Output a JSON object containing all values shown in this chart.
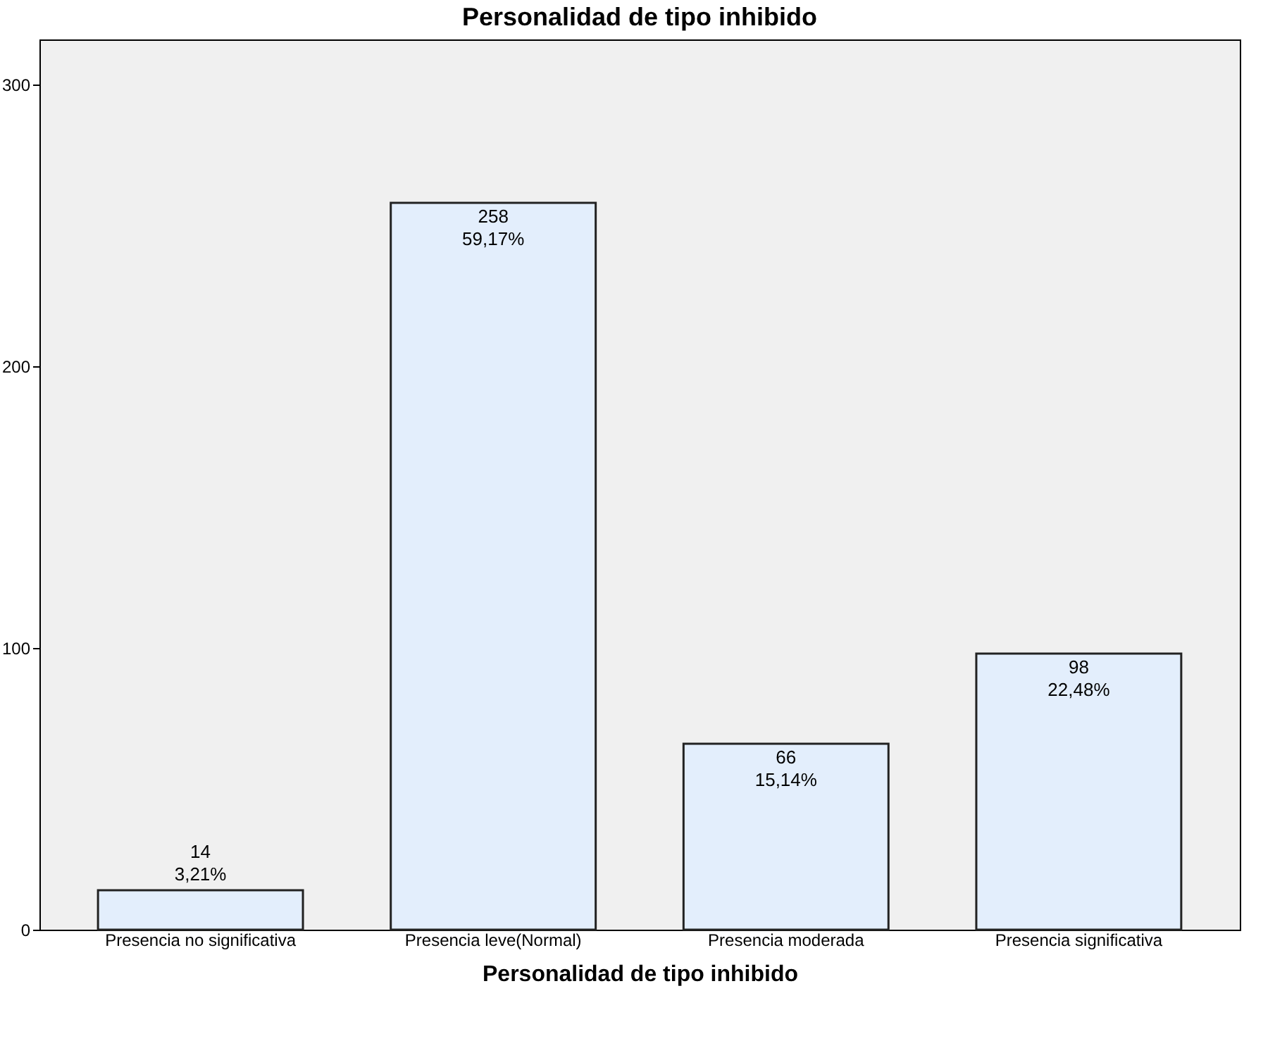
{
  "chart_data": {
    "type": "bar",
    "title": "Personalidad de tipo inhibido",
    "xlabel": "Personalidad de tipo inhibido",
    "categories": [
      "Presencia no significativa",
      "Presencia leve(Normal)",
      "Presencia moderada",
      "Presencia significativa"
    ],
    "values": [
      14,
      258,
      66,
      98
    ],
    "value_labels": [
      "14\n3,21%",
      "258\n59,17%",
      "66\n15,14%",
      "98\n22,48%"
    ],
    "color": "#e3eefc",
    "ylim": [
      0,
      316
    ],
    "yticks": [
      0,
      100,
      200,
      300
    ],
    "grid": false
  }
}
